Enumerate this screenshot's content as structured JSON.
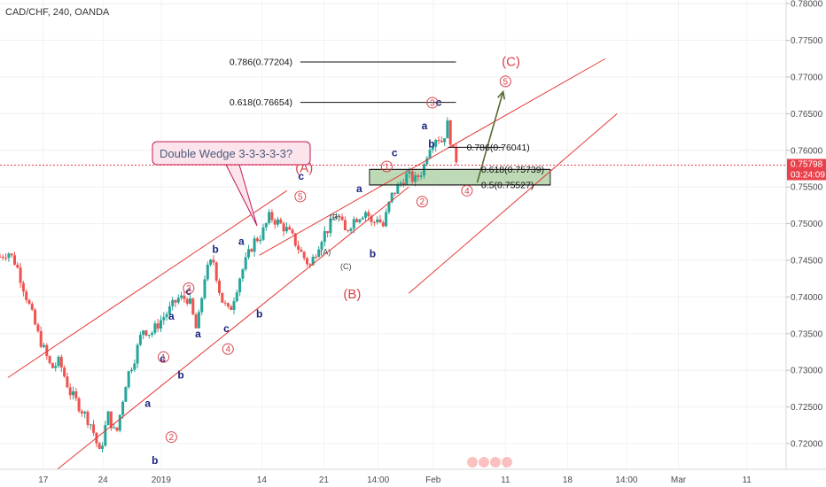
{
  "chart_data": {
    "type": "candlestick",
    "title": "CAD/CHF, 240, OANDA",
    "ylim": [
      0.7165,
      0.7805
    ],
    "y_ticks": [
      "0.78000",
      "0.77500",
      "0.77000",
      "0.76500",
      "0.76000",
      "0.75500",
      "0.75000",
      "0.74500",
      "0.74000",
      "0.73500",
      "0.73000",
      "0.72500",
      "0.72000"
    ],
    "x_ticks": [
      "17",
      "24",
      "2019",
      "14",
      "21",
      "14:00",
      "Feb",
      "11",
      "18",
      "14:00",
      "Mar",
      "11"
    ],
    "current_price": {
      "value": "0.75798",
      "countdown": "03:24:09",
      "color": "#e9414b"
    },
    "colors": {
      "up": "#26a69a",
      "down": "#ef5350",
      "trend": "#e53935",
      "fib": "#111111",
      "zone": "#a8cc9c"
    },
    "price_path": [
      [
        0.7455,
        0
      ],
      [
        0.7462,
        3
      ],
      [
        0.7445,
        6
      ],
      [
        0.7398,
        10
      ],
      [
        0.735,
        14
      ],
      [
        0.7302,
        19
      ],
      [
        0.7312,
        22
      ],
      [
        0.727,
        26
      ],
      [
        0.7248,
        30
      ],
      [
        0.7225,
        34
      ],
      [
        0.7185,
        37
      ],
      [
        0.724,
        40
      ],
      [
        0.721,
        43
      ],
      [
        0.729,
        47
      ],
      [
        0.7318,
        50
      ],
      [
        0.7357,
        53
      ],
      [
        0.735,
        56
      ],
      [
        0.737,
        60
      ],
      [
        0.7383,
        63
      ],
      [
        0.7398,
        66
      ],
      [
        0.7398,
        70
      ],
      [
        0.7352,
        73
      ],
      [
        0.743,
        76
      ],
      [
        0.7452,
        79
      ],
      [
        0.7398,
        82
      ],
      [
        0.7378,
        85
      ],
      [
        0.7428,
        89
      ],
      [
        0.7475,
        94
      ],
      [
        0.7485,
        97
      ],
      [
        0.751,
        100
      ],
      [
        0.7502,
        103
      ],
      [
        0.7493,
        106
      ],
      [
        0.7478,
        109
      ],
      [
        0.7458,
        112
      ],
      [
        0.7442,
        115
      ],
      [
        0.748,
        119
      ],
      [
        0.7495,
        122
      ],
      [
        0.7515,
        125
      ],
      [
        0.7488,
        128
      ],
      [
        0.7505,
        131
      ],
      [
        0.7513,
        134
      ],
      [
        0.7518,
        136
      ],
      [
        0.7497,
        138
      ],
      [
        0.751,
        140
      ],
      [
        0.7495,
        142
      ],
      [
        0.7536,
        145
      ],
      [
        0.7553,
        148
      ],
      [
        0.7566,
        151
      ],
      [
        0.7559,
        154
      ],
      [
        0.7575,
        157
      ],
      [
        0.7605,
        159
      ],
      [
        0.762,
        162
      ],
      [
        0.7612,
        164
      ],
      [
        0.7635,
        166
      ],
      [
        0.7598,
        168
      ],
      [
        0.7582,
        170
      ]
    ],
    "trendlines": [
      {
        "p1": [
          0.729,
          1
        ],
        "p2": [
          0.7545,
          36.5
        ]
      },
      {
        "p1": [
          0.7165,
          7.3
        ],
        "p2": [
          0.755,
          52
        ]
      },
      {
        "p1": [
          0.7457,
          33
        ],
        "p2": [
          0.7725,
          77
        ]
      },
      {
        "p1": [
          0.7405,
          52
        ],
        "p2": [
          0.765,
          78.5
        ]
      }
    ],
    "arrow": {
      "from": [
        0.7556,
        0.607
      ],
      "to": [
        0.768,
        0.64
      ]
    },
    "fib_levels": [
      {
        "label": "0.786(0.77204)",
        "value": 0.77204,
        "x": [
          0.32,
          0.58
        ]
      },
      {
        "label": "0.618(0.76654)",
        "value": 0.76654,
        "x": [
          0.32,
          0.58
        ]
      },
      {
        "label": "0.786(0.76041)",
        "value": 0.76041,
        "x": [
          0.57,
          0.64
        ]
      },
      {
        "label": "0.618(0.75739)",
        "value": 0.75739,
        "x": [
          0.47,
          0.7
        ]
      },
      {
        "label": "0.5(0.75527)",
        "value": 0.75527,
        "x": [
          0.47,
          0.7
        ]
      }
    ],
    "zone": {
      "y": [
        0.75739,
        0.75527
      ],
      "x": [
        0.47,
        0.7
      ]
    },
    "callout": {
      "text": "Double Wedge 3-3-3-3-3?"
    },
    "wave_labels": [
      {
        "t": "a",
        "xv": 0.188,
        "yv": 0.725,
        "k": "letter"
      },
      {
        "t": "b",
        "xv": 0.197,
        "yv": 0.7172,
        "k": "letter"
      },
      {
        "t": "c",
        "xv": 0.207,
        "yv": 0.7311,
        "k": "letter"
      },
      {
        "t": "b",
        "xv": 0.23,
        "yv": 0.7289,
        "k": "letter"
      },
      {
        "t": "a",
        "xv": 0.218,
        "yv": 0.7369,
        "k": "letter"
      },
      {
        "t": "a",
        "xv": 0.252,
        "yv": 0.7345,
        "k": "letter"
      },
      {
        "t": "c",
        "xv": 0.24,
        "yv": 0.7403,
        "k": "letter"
      },
      {
        "t": "b",
        "xv": 0.274,
        "yv": 0.746,
        "k": "letter"
      },
      {
        "t": "c",
        "xv": 0.288,
        "yv": 0.7352,
        "k": "letter"
      },
      {
        "t": "a",
        "xv": 0.307,
        "yv": 0.7471,
        "k": "letter"
      },
      {
        "t": "b",
        "xv": 0.33,
        "yv": 0.7372,
        "k": "letter"
      },
      {
        "t": "c",
        "xv": 0.383,
        "yv": 0.756,
        "k": "letter"
      },
      {
        "t": "a",
        "xv": 0.457,
        "yv": 0.7543,
        "k": "letter"
      },
      {
        "t": "b",
        "xv": 0.474,
        "yv": 0.7454,
        "k": "letter"
      },
      {
        "t": "c",
        "xv": 0.502,
        "yv": 0.7592,
        "k": "letter"
      },
      {
        "t": "a",
        "xv": 0.54,
        "yv": 0.7629,
        "k": "letter"
      },
      {
        "t": "c",
        "xv": 0.558,
        "yv": 0.7661,
        "k": "letter"
      },
      {
        "t": "b",
        "xv": 0.549,
        "yv": 0.7604,
        "k": "letter"
      },
      {
        "t": "(A)",
        "xv": 0.387,
        "yv": 0.757,
        "k": "big"
      },
      {
        "t": "(B)",
        "xv": 0.448,
        "yv": 0.7398,
        "k": "big"
      },
      {
        "t": "(C)",
        "xv": 0.65,
        "yv": 0.7715,
        "k": "big"
      },
      {
        "t": "(B)",
        "xv": 0.426,
        "yv": 0.7505,
        "k": "small"
      },
      {
        "t": "(A)",
        "xv": 0.414,
        "yv": 0.7458,
        "k": "small"
      },
      {
        "t": "(C)",
        "xv": 0.44,
        "yv": 0.7438,
        "k": "small"
      }
    ],
    "circle_labels": [
      {
        "t": "1",
        "xv": 0.208,
        "yv": 0.7318
      },
      {
        "t": "2",
        "xv": 0.218,
        "yv": 0.7209
      },
      {
        "t": "3",
        "xv": 0.24,
        "yv": 0.7412
      },
      {
        "t": "4",
        "xv": 0.29,
        "yv": 0.7329
      },
      {
        "t": "5",
        "xv": 0.382,
        "yv": 0.7537
      },
      {
        "t": "1",
        "xv": 0.492,
        "yv": 0.7578
      },
      {
        "t": "2",
        "xv": 0.537,
        "yv": 0.753
      },
      {
        "t": "3",
        "xv": 0.55,
        "yv": 0.7665
      },
      {
        "t": "4",
        "xv": 0.594,
        "yv": 0.7545
      },
      {
        "t": "5",
        "xv": 0.643,
        "yv": 0.7694
      }
    ]
  }
}
